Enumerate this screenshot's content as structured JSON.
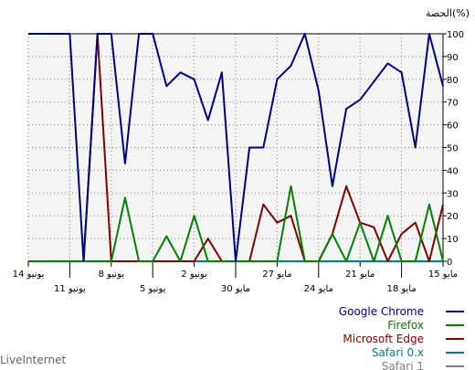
{
  "chart_data": {
    "type": "line",
    "ylabel": "الحصة(%)",
    "ylim": [
      0,
      100
    ],
    "y_ticks": [
      0,
      10,
      20,
      30,
      40,
      50,
      60,
      70,
      80,
      90,
      100
    ],
    "x_direction": "right-to-left",
    "grid": true,
    "legend_position": "bottom-right",
    "x_dates": [
      "2023-05-15",
      "2023-05-16",
      "2023-05-17",
      "2023-05-18",
      "2023-05-19",
      "2023-05-20",
      "2023-05-21",
      "2023-05-22",
      "2023-05-23",
      "2023-05-24",
      "2023-05-25",
      "2023-05-26",
      "2023-05-27",
      "2023-05-28",
      "2023-05-29",
      "2023-05-30",
      "2023-05-31",
      "2023-06-01",
      "2023-06-02",
      "2023-06-03",
      "2023-06-04",
      "2023-06-05",
      "2023-06-06",
      "2023-06-07",
      "2023-06-08",
      "2023-06-09",
      "2023-06-10",
      "2023-06-11",
      "2023-06-12",
      "2023-06-13",
      "2023-06-14"
    ],
    "x_ticks_upper": [
      {
        "date": "2023-05-15",
        "label": "15 مايو"
      },
      {
        "date": "2023-05-21",
        "label": "21 مايو"
      },
      {
        "date": "2023-05-27",
        "label": "27 مايو"
      },
      {
        "date": "2023-06-02",
        "label": "2 يونيو"
      },
      {
        "date": "2023-06-08",
        "label": "8 يونيو"
      },
      {
        "date": "2023-06-14",
        "label": "14 يونيو"
      }
    ],
    "x_ticks_lower": [
      {
        "date": "2023-05-18",
        "label": "18 مايو"
      },
      {
        "date": "2023-05-24",
        "label": "24 مايو"
      },
      {
        "date": "2023-05-30",
        "label": "30 مايو"
      },
      {
        "date": "2023-06-05",
        "label": "5 يونيو"
      },
      {
        "date": "2023-06-11",
        "label": "11 يونيو"
      }
    ],
    "series": [
      {
        "name": "Google Chrome",
        "color": "#000080",
        "values": [
          77,
          100,
          50,
          83,
          87,
          79,
          71,
          67,
          33,
          75,
          100,
          86,
          80,
          50,
          50,
          0,
          83,
          62,
          80,
          83,
          77,
          100,
          100,
          43,
          100,
          100,
          0,
          100,
          100,
          100,
          100
        ]
      },
      {
        "name": "Firefox",
        "color": "#008000",
        "values": [
          0,
          25,
          0,
          0,
          20,
          0,
          17,
          0,
          12,
          0,
          0,
          33,
          0,
          0,
          0,
          0,
          0,
          0,
          20,
          0,
          11,
          0,
          0,
          28,
          0,
          0,
          0,
          0,
          0,
          0,
          0
        ]
      },
      {
        "name": "Microsoft Edge",
        "color": "#800000",
        "values": [
          25,
          0,
          17,
          12,
          0,
          15,
          17,
          33,
          12,
          0,
          0,
          20,
          17,
          25,
          0,
          0,
          0,
          10,
          0,
          0,
          0,
          0,
          0,
          0,
          0,
          100,
          0,
          0,
          0,
          0,
          0
        ]
      },
      {
        "name": "Safari 0.x",
        "color": "#008080",
        "values": [
          0,
          0,
          0,
          0,
          0,
          0,
          0,
          0,
          0,
          0,
          0,
          0,
          0,
          0,
          0,
          0,
          0,
          0,
          0,
          0,
          0,
          0,
          0,
          0,
          0,
          0,
          0,
          0,
          0,
          0,
          0
        ]
      },
      {
        "name": "Safari 1",
        "color": "#808080",
        "values": [
          0,
          0,
          0,
          0,
          0,
          0,
          0,
          0,
          0,
          0,
          0,
          0,
          0,
          0,
          0,
          0,
          0,
          0,
          0,
          0,
          0,
          0,
          0,
          0,
          0,
          0,
          0,
          0,
          0,
          0,
          0
        ]
      }
    ]
  },
  "watermark": "LiveInternet"
}
